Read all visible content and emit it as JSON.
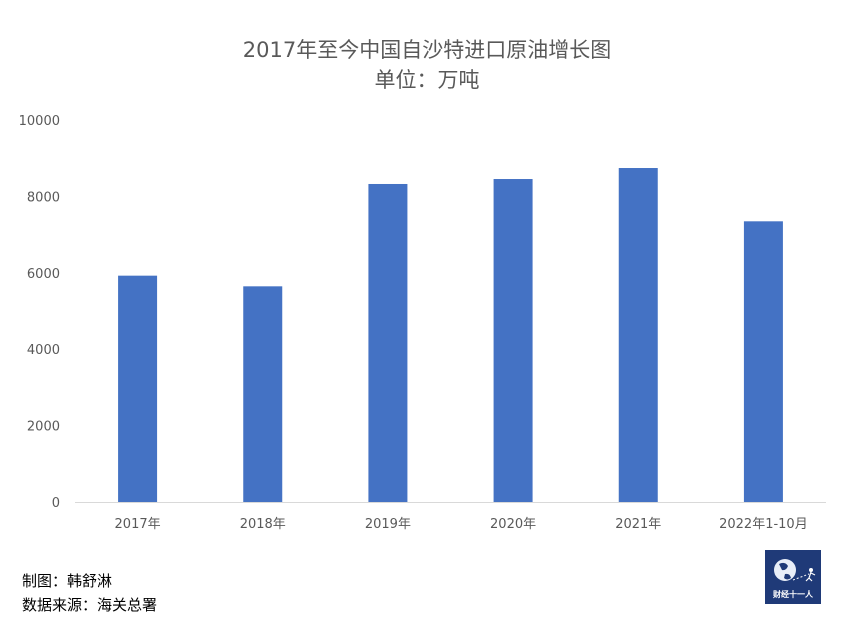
{
  "chart_data": {
    "type": "bar",
    "title": "2017年至今中国自沙特进口原油增长图",
    "subtitle": "单位：万吨",
    "categories": [
      "2017年",
      "2018年",
      "2019年",
      "2020年",
      "2021年",
      "2022年1-10月"
    ],
    "values": [
      5925,
      5646,
      8325,
      8455,
      8743,
      7348
    ],
    "yticks": [
      "0",
      "2000",
      "4000",
      "6000",
      "8000",
      "10000"
    ],
    "ylim": [
      0,
      10000
    ],
    "xlabel": "",
    "ylabel": "",
    "grid": false,
    "bar_color": "#4472c4"
  },
  "footer": {
    "made_by": "制图：韩舒淋",
    "source": "数据来源：海关总署"
  },
  "logo": {
    "text": "财经十一人"
  }
}
